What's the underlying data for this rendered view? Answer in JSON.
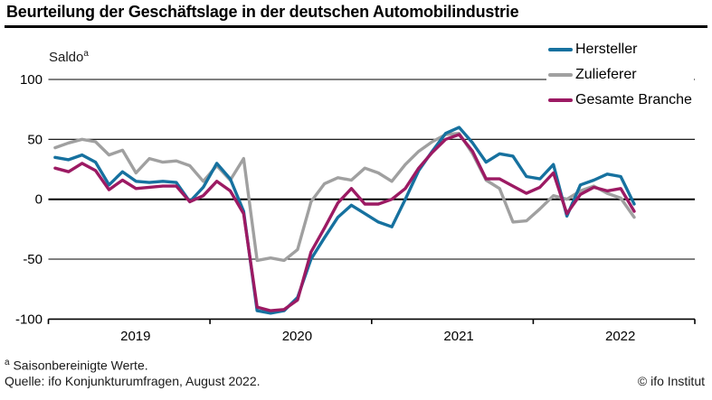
{
  "title": "Beurteilung der Geschäftslage in der deutschen Automobilindustrie",
  "saldo_label": {
    "text": "Saldo",
    "superscript": "a"
  },
  "legend": [
    {
      "label": "Hersteller",
      "color": "#16719f"
    },
    {
      "label": "Zulieferer",
      "color": "#a0a0a0"
    },
    {
      "label": "Gesamte Branche",
      "color": "#9c1a63"
    }
  ],
  "axes": {
    "y_ticks": [
      {
        "label": "100",
        "value": 100
      },
      {
        "label": "50",
        "value": 50
      },
      {
        "label": "0",
        "value": 0
      },
      {
        "label": "-50",
        "value": -50
      },
      {
        "label": "-100",
        "value": -100
      }
    ],
    "x_ticks": [
      "2019",
      "2020",
      "2021",
      "2022"
    ]
  },
  "footnotes": {
    "marker": "a",
    "note": "Saisonbereinigte Werte.",
    "source": "Quelle: ifo Konjunkturumfragen, August 2022."
  },
  "copyright": "© ifo Institut",
  "chart_data": {
    "type": "line",
    "title": "Beurteilung der Geschäftslage in der deutschen Automobilindustrie",
    "ylabel": "Saldo (saisonbereinigt)",
    "ylim": [
      -100,
      100
    ],
    "gridlines": [
      100,
      50,
      0,
      -50,
      -100
    ],
    "x_axis_span_months": 48,
    "x_tick_labels": [
      "2019",
      "2020",
      "2021",
      "2022"
    ],
    "legend_position": "top-right",
    "months": [
      "2019-01",
      "2019-02",
      "2019-03",
      "2019-04",
      "2019-05",
      "2019-06",
      "2019-07",
      "2019-08",
      "2019-09",
      "2019-10",
      "2019-11",
      "2019-12",
      "2020-01",
      "2020-02",
      "2020-03",
      "2020-04",
      "2020-05",
      "2020-06",
      "2020-07",
      "2020-08",
      "2020-09",
      "2020-10",
      "2020-11",
      "2020-12",
      "2021-01",
      "2021-02",
      "2021-03",
      "2021-04",
      "2021-05",
      "2021-06",
      "2021-07",
      "2021-08",
      "2021-09",
      "2021-10",
      "2021-11",
      "2021-12",
      "2022-01",
      "2022-02",
      "2022-03",
      "2022-04",
      "2022-05",
      "2022-06",
      "2022-07",
      "2022-08"
    ],
    "series": [
      {
        "name": "Hersteller",
        "color": "#16719f",
        "values": [
          35,
          33,
          37,
          31,
          12,
          23,
          15,
          14,
          15,
          14,
          -2,
          10,
          30,
          17,
          -10,
          -93,
          -95,
          -93,
          -82,
          -50,
          -32,
          -15,
          -5,
          -12,
          -19,
          -23,
          0,
          24,
          40,
          55,
          60,
          47,
          31,
          38,
          36,
          19,
          17,
          29,
          -14,
          12,
          16,
          21,
          19,
          -4
        ]
      },
      {
        "name": "Zulieferer",
        "color": "#a0a0a0",
        "values": [
          43,
          47,
          50,
          48,
          37,
          41,
          22,
          34,
          31,
          32,
          28,
          15,
          28,
          16,
          34,
          -51,
          -49,
          -51,
          -42,
          -2,
          13,
          18,
          16,
          26,
          22,
          15,
          29,
          40,
          48,
          54,
          55,
          38,
          16,
          9,
          -19,
          -18,
          -8,
          3,
          0,
          7,
          11,
          5,
          1,
          -15
        ]
      },
      {
        "name": "Gesamte Branche",
        "color": "#9c1a63",
        "values": [
          26,
          23,
          30,
          24,
          8,
          16,
          9,
          10,
          11,
          11,
          -2,
          3,
          15,
          7,
          -12,
          -90,
          -93,
          -92,
          -84,
          -44,
          -24,
          -3,
          9,
          -4,
          -4,
          0,
          9,
          26,
          39,
          50,
          54,
          40,
          17,
          17,
          11,
          5,
          10,
          22,
          -12,
          4,
          10,
          7,
          9,
          -10
        ]
      }
    ]
  }
}
